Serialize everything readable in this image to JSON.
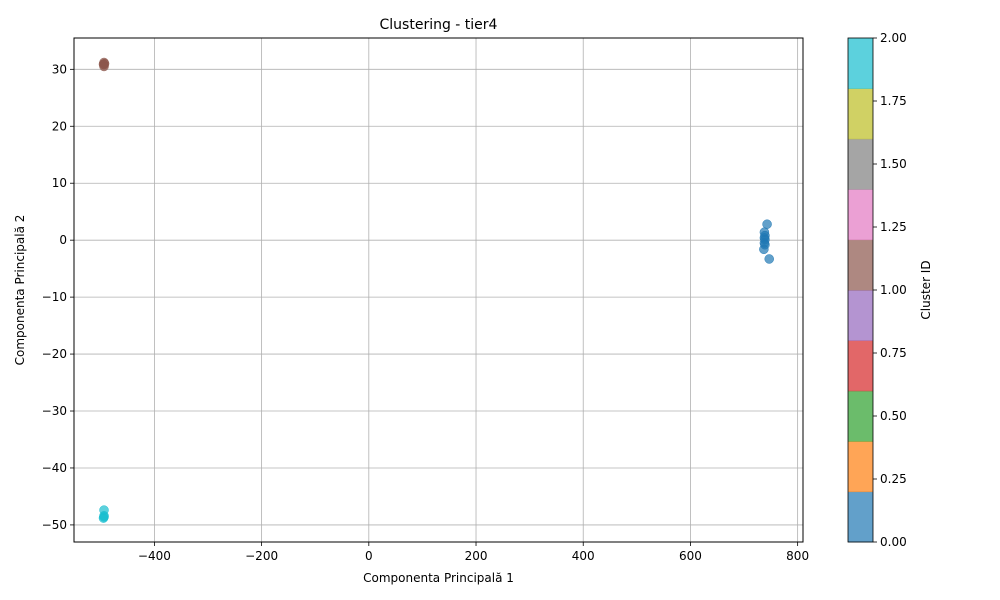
{
  "chart_data": {
    "type": "scatter",
    "title": "Clustering - tier4",
    "xlabel": "Componenta Principală 1",
    "ylabel": "Componenta Principală 2",
    "xlim": [
      -550,
      810
    ],
    "ylim": [
      -53,
      35.5
    ],
    "xticks": [
      -400,
      -200,
      0,
      200,
      400,
      600,
      800
    ],
    "xtick_labels": [
      "−400",
      "−200",
      "0",
      "200",
      "400",
      "600",
      "800"
    ],
    "yticks": [
      -50,
      -40,
      -30,
      -20,
      -10,
      0,
      10,
      20,
      30
    ],
    "ytick_labels": [
      "−50",
      "−40",
      "−30",
      "−20",
      "−10",
      "0",
      "10",
      "20",
      "30"
    ],
    "grid": true,
    "colorbar": {
      "label": "Cluster ID",
      "range": [
        0,
        2
      ],
      "ticks": [
        0.0,
        0.25,
        0.5,
        0.75,
        1.0,
        1.25,
        1.5,
        1.75,
        2.0
      ],
      "tick_labels": [
        "0.00",
        "0.25",
        "0.50",
        "0.75",
        "1.00",
        "1.25",
        "1.50",
        "1.75",
        "2.00"
      ],
      "colors": [
        "#1f77b4",
        "#ff7f0e",
        "#2ca02c",
        "#d62728",
        "#9467bd",
        "#8c564b",
        "#e377c2",
        "#7f7f7f",
        "#bcbd22",
        "#17becf"
      ],
      "opacity": 0.7
    },
    "points": [
      {
        "x": -494,
        "y": 31.2,
        "cluster": 1
      },
      {
        "x": -494,
        "y": 30.8,
        "cluster": 1
      },
      {
        "x": -494,
        "y": 30.5,
        "cluster": 1
      },
      {
        "x": -493,
        "y": 31.0,
        "cluster": 1
      },
      {
        "x": -495,
        "y": 30.9,
        "cluster": 1
      },
      {
        "x": -494,
        "y": -47.4,
        "cluster": 2
      },
      {
        "x": -494,
        "y": -48.4,
        "cluster": 2
      },
      {
        "x": -495,
        "y": -48.8,
        "cluster": 2
      },
      {
        "x": -494,
        "y": -48.6,
        "cluster": 2
      },
      {
        "x": 743,
        "y": 2.8,
        "cluster": 0
      },
      {
        "x": 738,
        "y": 1.4,
        "cluster": 0
      },
      {
        "x": 739,
        "y": 0.8,
        "cluster": 0
      },
      {
        "x": 738,
        "y": 0.4,
        "cluster": 0
      },
      {
        "x": 739,
        "y": 0.1,
        "cluster": 0
      },
      {
        "x": 738,
        "y": -0.5,
        "cluster": 0
      },
      {
        "x": 739,
        "y": -0.8,
        "cluster": 0
      },
      {
        "x": 737,
        "y": -1.6,
        "cluster": 0
      },
      {
        "x": 747,
        "y": -3.3,
        "cluster": 0
      }
    ]
  }
}
